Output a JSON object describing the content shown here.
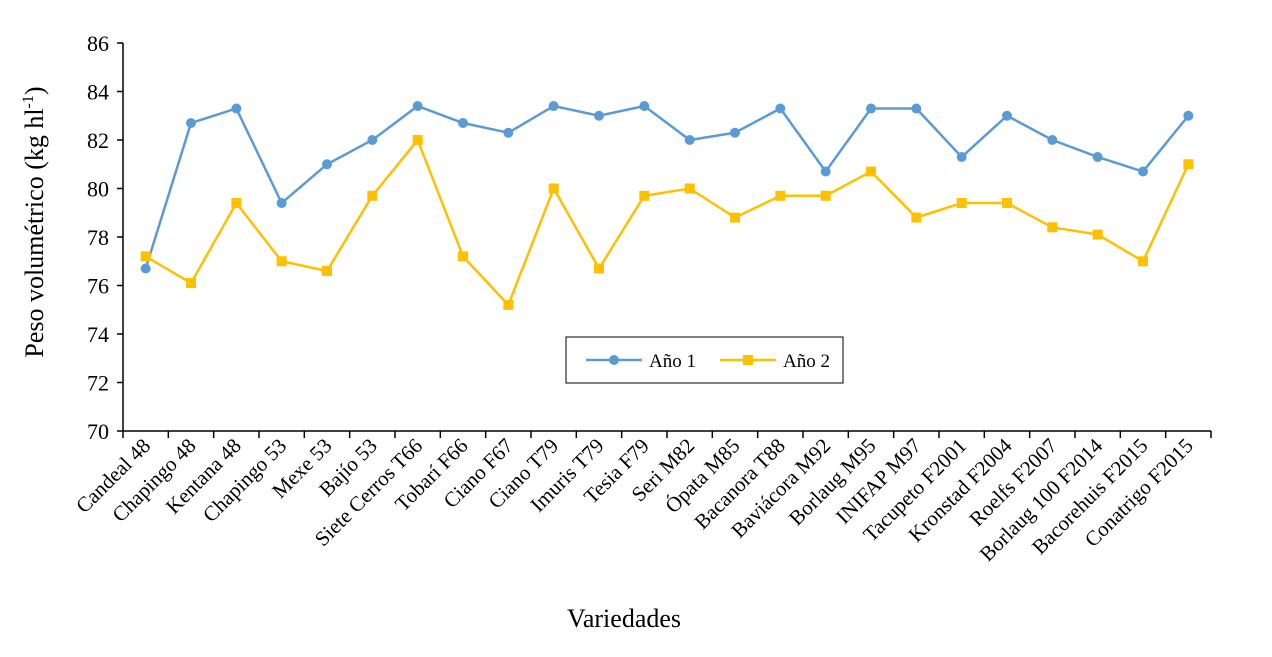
{
  "chart_data": {
    "type": "line",
    "title": "",
    "xlabel": "Variedades",
    "ylabel_main": "Peso volumétrico (kg hl",
    "ylabel_sup": "-1",
    "ylabel_close": ")",
    "ylim": [
      70,
      86
    ],
    "yticks": [
      70,
      72,
      74,
      76,
      78,
      80,
      82,
      84,
      86
    ],
    "grid": false,
    "legend_position": "center-bottom",
    "categories": [
      "Candeal 48",
      "Chapingo 48",
      "Kentana 48",
      "Chapingo 53",
      "Mexe 53",
      "Bajío 53",
      "Siete Cerros T66",
      "Tobarí F66",
      "Ciano F67",
      "Ciano T79",
      "Imuris T79",
      "Tesia F79",
      "Seri M82",
      "Ópata M85",
      "Bacanora T88",
      "Baviácora M92",
      "Borlaug M95",
      "INIFAP M97",
      "Tacupeto F2001",
      "Kronstad F2004",
      "Roelfs F2007",
      "Borlaug 100 F2014",
      "Bacorehuis F2015",
      "Conatrigo F2015"
    ],
    "series": [
      {
        "name": "Año 1",
        "color": "#5b9bd5",
        "marker": "circle",
        "values": [
          76.7,
          82.7,
          83.3,
          79.4,
          81.0,
          82.0,
          83.4,
          82.7,
          82.3,
          83.4,
          83.0,
          83.4,
          82.0,
          82.3,
          83.3,
          80.7,
          83.3,
          83.3,
          81.3,
          83.0,
          82.0,
          81.3,
          80.7,
          83.0
        ]
      },
      {
        "name": "Año 2",
        "color": "#ffc000",
        "marker": "square",
        "values": [
          77.2,
          76.1,
          79.4,
          77.0,
          76.6,
          79.7,
          82.0,
          77.2,
          75.2,
          80.0,
          76.7,
          79.7,
          80.0,
          78.8,
          79.7,
          79.7,
          80.7,
          78.8,
          79.4,
          79.4,
          78.4,
          78.1,
          77.0,
          81.0
        ]
      }
    ]
  }
}
